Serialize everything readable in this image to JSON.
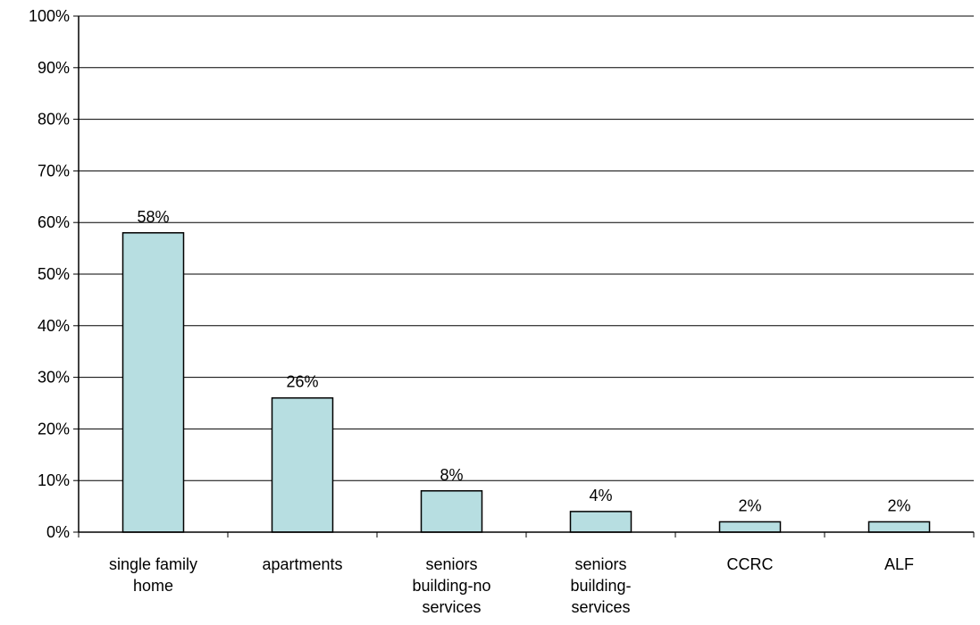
{
  "chart_data": {
    "type": "bar",
    "categories": [
      [
        "single family",
        "home"
      ],
      [
        "apartments"
      ],
      [
        "seniors",
        "building-no",
        "services"
      ],
      [
        "seniors",
        "building-",
        "services"
      ],
      [
        "CCRC"
      ],
      [
        "ALF"
      ]
    ],
    "values": [
      58,
      26,
      8,
      4,
      2,
      2
    ],
    "value_labels": [
      "58%",
      "26%",
      "8%",
      "4%",
      "2%",
      "2%"
    ],
    "ylim": [
      0,
      100
    ],
    "yticks": [
      0,
      10,
      20,
      30,
      40,
      50,
      60,
      70,
      80,
      90,
      100
    ],
    "ytick_labels": [
      "0%",
      "10%",
      "20%",
      "30%",
      "40%",
      "50%",
      "60%",
      "70%",
      "80%",
      "90%",
      "100%"
    ],
    "grid": true,
    "legend": "none",
    "title": "",
    "xlabel": "",
    "ylabel": "",
    "colors": {
      "bar_fill": "#B7DEE1",
      "bar_stroke": "#000000",
      "grid": "#000000"
    }
  }
}
